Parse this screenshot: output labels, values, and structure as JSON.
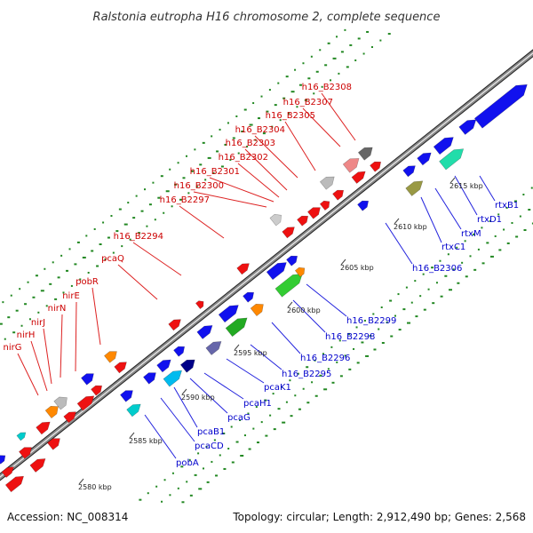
{
  "title": "Ralstonia eutropha H16 chromosome 2, complete sequence",
  "footer": {
    "accession": "Accession: NC_008314",
    "summary": "Topology: circular; Length: 2,912,490 bp; Genes: 2,568"
  },
  "colors": {
    "top_strand": "#ee1111",
    "bottom_strand": "#1111ee",
    "backbone": "#888888",
    "gc_dots": "#228822"
  },
  "scale_ticks": [
    "2580 kbp",
    "2585 kbp",
    "2590 kbp",
    "2595 kbp",
    "2600 kbp",
    "2605 kbp",
    "2610 kbp",
    "2615 kbp"
  ],
  "top_genes": [
    "nirG",
    "nirH",
    "nirJ",
    "nirN",
    "nirE",
    "pobR",
    "pcaQ",
    "h16_B2294",
    "h16_B2297",
    "h16_B2300",
    "h16_B2301",
    "h16_B2302",
    "h16_B2303",
    "h16_B2304",
    "h16_B2305",
    "h16_B2307",
    "h16_B2308"
  ],
  "bottom_genes": [
    "pobA",
    "pcaCD",
    "pcaB1",
    "pcaG",
    "pcaH1",
    "pcaK1",
    "h16_B2295",
    "h16_B2296",
    "h16_B2298",
    "h16_B2299",
    "h16_B2306",
    "rtxC1",
    "rtxM",
    "rtxD1",
    "rtxB1"
  ]
}
